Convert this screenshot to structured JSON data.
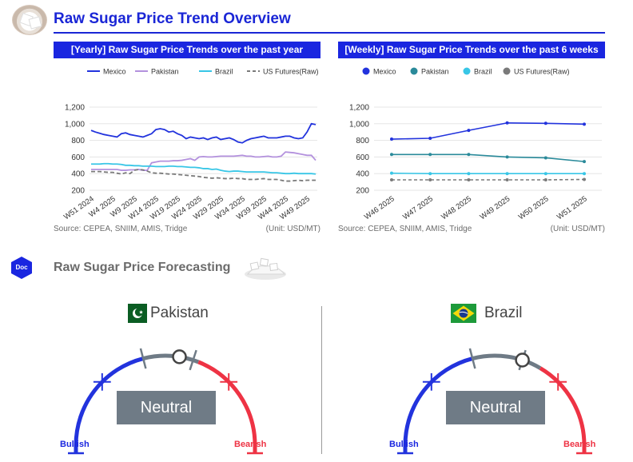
{
  "header": {
    "title": "Raw Sugar Price Trend Overview"
  },
  "yearly": {
    "heading": "[Yearly] Raw Sugar Price Trends over the past year",
    "source": "Source: CEPEA, SNIIM, AMIS, Tridge",
    "unit": "(Unit: USD/MT)"
  },
  "weekly": {
    "heading": "[Weekly] Raw Sugar Price Trends over the past 6 weeks",
    "source": "Source: CEPEA, SNIIM, AMIS, Tridge",
    "unit": "(Unit: USD/MT)"
  },
  "forecast": {
    "title": "Raw Sugar Price Forecasting",
    "badge": "Doc",
    "gauges": [
      {
        "country": "Pakistan",
        "status": "Neutral",
        "bullish": "Bullish",
        "bearish": "Bearish",
        "position": 0.62
      },
      {
        "country": "Brazil",
        "status": "Neutral",
        "bullish": "Bullish",
        "bearish": "Bearish",
        "position": 0.67
      }
    ]
  },
  "colors": {
    "mexico": "#2233dd",
    "pakistan": "#b391dd",
    "brazil": "#38c6e6",
    "us": "#7a7a7a",
    "weekly_pakistan": "#2a8a9a",
    "bearish": "#ee3344",
    "neutral": "#6f7b86"
  },
  "chart_data": [
    {
      "type": "line",
      "ylim": [
        200,
        1200
      ],
      "yticks": [
        "200",
        "400",
        "600",
        "800",
        "1,000",
        "1,200"
      ],
      "x": [
        "W51 2024",
        "W52 2024",
        "W1 2025",
        "W2 2025",
        "W3 2025",
        "W4 2025",
        "W5 2025",
        "W6 2025",
        "W7 2025",
        "W8 2025",
        "W9 2025",
        "W10 2025",
        "W11 2025",
        "W12 2025",
        "W13 2025",
        "W14 2025",
        "W15 2025",
        "W16 2025",
        "W17 2025",
        "W18 2025",
        "W19 2025",
        "W20 2025",
        "W21 2025",
        "W22 2025",
        "W23 2025",
        "W24 2025",
        "W25 2025",
        "W26 2025",
        "W27 2025",
        "W28 2025",
        "W29 2025",
        "W30 2025",
        "W31 2025",
        "W32 2025",
        "W33 2025",
        "W34 2025",
        "W35 2025",
        "W36 2025",
        "W37 2025",
        "W38 2025",
        "W39 2025",
        "W40 2025",
        "W41 2025",
        "W42 2025",
        "W43 2025",
        "W44 2025",
        "W45 2025",
        "W46 2025",
        "W47 2025",
        "W48 2025",
        "W49 2025",
        "W50 2025",
        "W51 2025"
      ],
      "xtick_labels": [
        "W51 2024",
        "W4 2025",
        "W9 2025",
        "W14 2025",
        "W19 2025",
        "W24 2025",
        "W29 2025",
        "W34 2025",
        "W39 2025",
        "W44 2025",
        "W49 2025"
      ],
      "legend": "top",
      "series": [
        {
          "name": "Mexico",
          "values": [
            920,
            900,
            885,
            870,
            860,
            850,
            840,
            880,
            890,
            870,
            860,
            850,
            840,
            860,
            880,
            930,
            940,
            930,
            900,
            910,
            880,
            860,
            820,
            840,
            830,
            820,
            830,
            810,
            830,
            840,
            810,
            820,
            830,
            810,
            780,
            770,
            800,
            820,
            830,
            840,
            850,
            830,
            830,
            830,
            840,
            850,
            850,
            830,
            820,
            830,
            900,
            1000,
            990
          ]
        },
        {
          "name": "Pakistan",
          "values": [
            450,
            450,
            450,
            450,
            450,
            450,
            450,
            440,
            440,
            445,
            445,
            450,
            440,
            440,
            530,
            540,
            550,
            550,
            550,
            555,
            555,
            560,
            570,
            580,
            560,
            600,
            605,
            600,
            600,
            605,
            610,
            610,
            610,
            610,
            615,
            620,
            610,
            610,
            600,
            600,
            605,
            610,
            600,
            600,
            610,
            660,
            655,
            650,
            640,
            630,
            620,
            620,
            560
          ]
        },
        {
          "name": "Brazil",
          "values": [
            515,
            515,
            515,
            520,
            520,
            515,
            515,
            510,
            500,
            500,
            495,
            495,
            490,
            490,
            490,
            485,
            485,
            485,
            490,
            490,
            485,
            485,
            480,
            475,
            475,
            470,
            460,
            460,
            450,
            455,
            440,
            430,
            425,
            430,
            430,
            425,
            420,
            420,
            420,
            420,
            420,
            415,
            410,
            410,
            405,
            400,
            400,
            405,
            400,
            400,
            400,
            400,
            395
          ]
        },
        {
          "name": "US Futures(Raw)",
          "values": [
            425,
            425,
            425,
            420,
            415,
            415,
            405,
            395,
            410,
            400,
            440,
            450,
            445,
            430,
            410,
            405,
            405,
            400,
            395,
            395,
            390,
            385,
            380,
            375,
            370,
            365,
            355,
            350,
            345,
            350,
            345,
            340,
            340,
            345,
            340,
            340,
            330,
            330,
            330,
            335,
            340,
            330,
            330,
            330,
            320,
            310,
            310,
            315,
            320,
            315,
            320,
            320,
            320
          ]
        }
      ]
    },
    {
      "type": "line",
      "ylim": [
        200,
        1200
      ],
      "yticks": [
        "200",
        "400",
        "600",
        "800",
        "1,000",
        "1,200"
      ],
      "x": [
        "W46 2025",
        "W47 2025",
        "W48 2025",
        "W49 2025",
        "W50 2025",
        "W51 2025"
      ],
      "legend": "top",
      "series": [
        {
          "name": "Mexico",
          "values": [
            815,
            825,
            920,
            1010,
            1005,
            995
          ]
        },
        {
          "name": "Pakistan",
          "values": [
            630,
            630,
            630,
            600,
            590,
            545
          ]
        },
        {
          "name": "Brazil",
          "values": [
            405,
            400,
            400,
            400,
            400,
            400
          ]
        },
        {
          "name": "US Futures(Raw)",
          "values": [
            325,
            325,
            325,
            325,
            325,
            330
          ]
        }
      ]
    }
  ]
}
